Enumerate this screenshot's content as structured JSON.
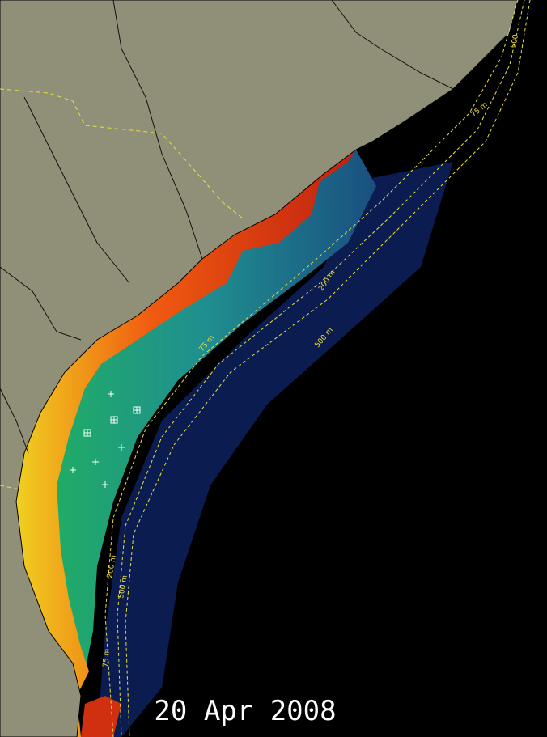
{
  "date": "20 Apr 2008",
  "contour_labels": [
    "75 m",
    "75 m",
    "75 m",
    "200 m",
    "200 m",
    "500 m",
    "500 m",
    "500"
  ]
}
